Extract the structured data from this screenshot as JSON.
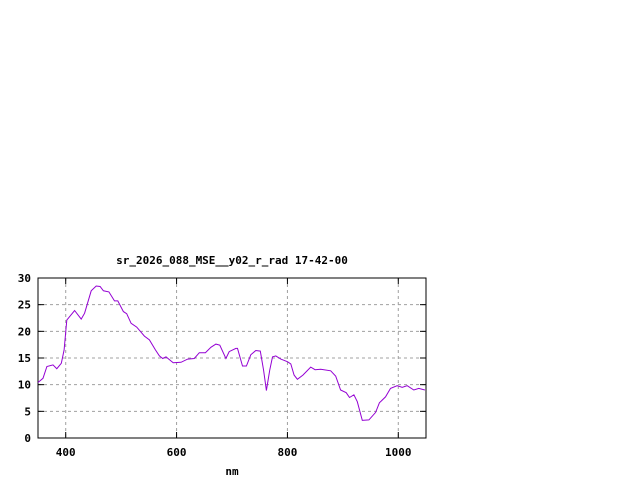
{
  "chart_data": {
    "type": "line",
    "title": "sr_2026_088_MSE__y02_r_rad 17-42-00",
    "xlabel": "nm",
    "ylabel": "",
    "xlim": [
      350,
      1050
    ],
    "ylim": [
      0,
      30
    ],
    "xticks": [
      400,
      600,
      800,
      1000
    ],
    "yticks": [
      0,
      5,
      10,
      15,
      20,
      25,
      30
    ],
    "grid": true,
    "line_color": "#9400d3",
    "series": [
      {
        "x": [
          350,
          359,
          366,
          377,
          384,
          392,
          397,
          402,
          416,
          428,
          434,
          446,
          455,
          462,
          468,
          478,
          488,
          494,
          504,
          510,
          518,
          528,
          542,
          551,
          562,
          569,
          575,
          581,
          594,
          608,
          620,
          632,
          641,
          652,
          662,
          671,
          678,
          689,
          695,
          707,
          710,
          719,
          726,
          734,
          743,
          751,
          757,
          762,
          768,
          773,
          779,
          788,
          800,
          806,
          812,
          818,
          828,
          842,
          850,
          860,
          878,
          887,
          896,
          906,
          912,
          920,
          926,
          935,
          947,
          959,
          966,
          977,
          986,
          998,
          1007,
          1016,
          1028,
          1037,
          1048
        ],
        "values": [
          10.4,
          11.2,
          13.4,
          13.7,
          13.0,
          14.0,
          16.5,
          22.1,
          23.9,
          22.3,
          23.4,
          27.6,
          28.5,
          28.4,
          27.6,
          27.4,
          25.7,
          25.7,
          23.7,
          23.3,
          21.5,
          20.8,
          19.1,
          18.4,
          16.5,
          15.4,
          14.9,
          15.2,
          14.1,
          14.2,
          14.8,
          14.9,
          16.0,
          16.0,
          17.0,
          17.6,
          17.4,
          14.9,
          16.2,
          16.8,
          16.8,
          13.5,
          13.5,
          15.6,
          16.4,
          16.3,
          12.7,
          8.9,
          12.7,
          15.2,
          15.4,
          14.8,
          14.3,
          13.9,
          11.8,
          11.0,
          11.8,
          13.3,
          12.8,
          12.9,
          12.6,
          11.6,
          9.0,
          8.5,
          7.6,
          8.1,
          6.8,
          3.3,
          3.4,
          4.8,
          6.6,
          7.7,
          9.3,
          9.8,
          9.5,
          9.8,
          9.0,
          9.3,
          9.0
        ]
      }
    ]
  }
}
